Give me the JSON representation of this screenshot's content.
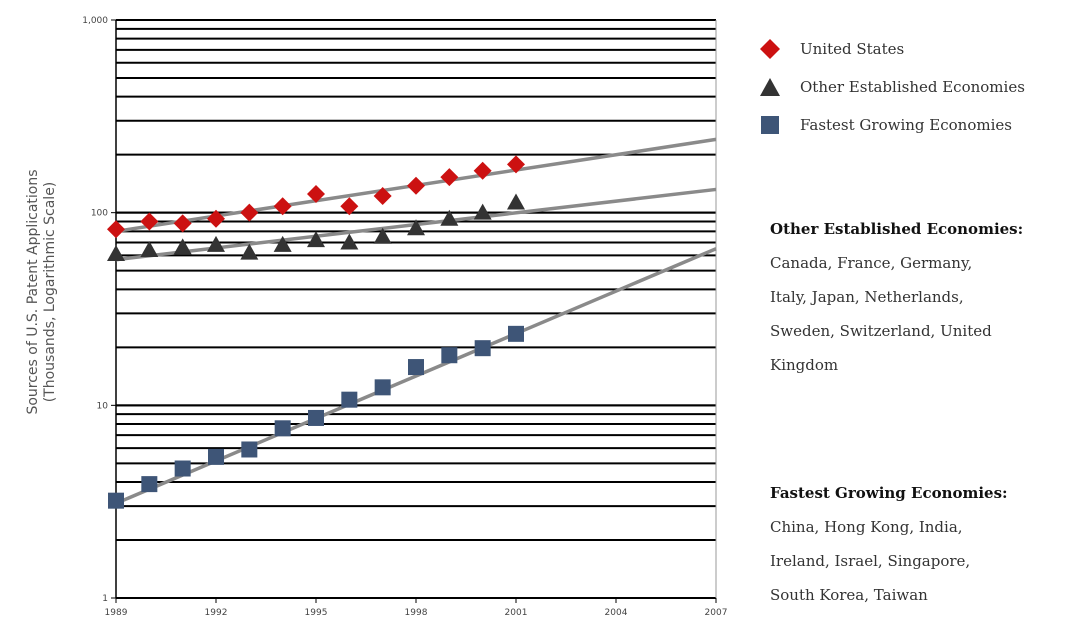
{
  "chart_data": {
    "type": "scatter",
    "title": "",
    "xlabel": "",
    "ylabel": "Sources of U.S. Patent Applications",
    "ylabel_sub": "(Thousands, Logarithmic Scale)",
    "y_scale": "log",
    "ylim": [
      1,
      1000
    ],
    "xlim": [
      1989,
      2007
    ],
    "x_ticks": [
      1989,
      1992,
      1995,
      1998,
      2001,
      2004,
      2007
    ],
    "y_ticks": [
      1,
      10,
      100,
      1000
    ],
    "y_tick_labels": [
      "1",
      "10",
      "100",
      "1,000"
    ],
    "grid": true,
    "legend_position": "right",
    "series": [
      {
        "name": "United States",
        "marker": "diamond",
        "color": "#cc1111",
        "x": [
          1989,
          1990,
          1991,
          1992,
          1993,
          1994,
          1995,
          1996,
          1997,
          1998,
          1999,
          2000,
          2001
        ],
        "values": [
          82,
          90,
          88,
          93,
          100,
          108,
          125,
          108,
          122,
          138,
          153,
          165,
          178
        ],
        "trend": [
          80,
          240
        ]
      },
      {
        "name": "Other Established Economies",
        "marker": "triangle",
        "color": "#333333",
        "x": [
          1989,
          1990,
          1991,
          1992,
          1993,
          1994,
          1995,
          1996,
          1997,
          1998,
          1999,
          2000,
          2001
        ],
        "values": [
          61,
          64,
          66,
          68,
          62,
          68,
          72,
          70,
          75,
          83,
          93,
          100,
          113
        ],
        "trend": [
          57,
          132
        ]
      },
      {
        "name": "Fastest Growing Economies",
        "marker": "square",
        "color": "#3e5577",
        "x": [
          1989,
          1990,
          1991,
          1992,
          1993,
          1994,
          1995,
          1996,
          1997,
          1998,
          1999,
          2000,
          2001
        ],
        "values": [
          3.2,
          3.9,
          4.7,
          5.4,
          5.9,
          7.6,
          8.6,
          10.7,
          12.4,
          15.8,
          18.2,
          19.8,
          23.5
        ],
        "trend": [
          3.1,
          65
        ]
      }
    ]
  },
  "notes": [
    {
      "title": "Other Established Economies:",
      "lines": [
        "Canada, France, Germany,",
        "Italy, Japan, Netherlands,",
        "Sweden, Switzerland, United",
        "Kingdom"
      ]
    },
    {
      "title": "Fastest Growing Economies:",
      "lines": [
        "China, Hong Kong, India,",
        "Ireland, Israel, Singapore,",
        "South Korea, Taiwan"
      ]
    }
  ]
}
